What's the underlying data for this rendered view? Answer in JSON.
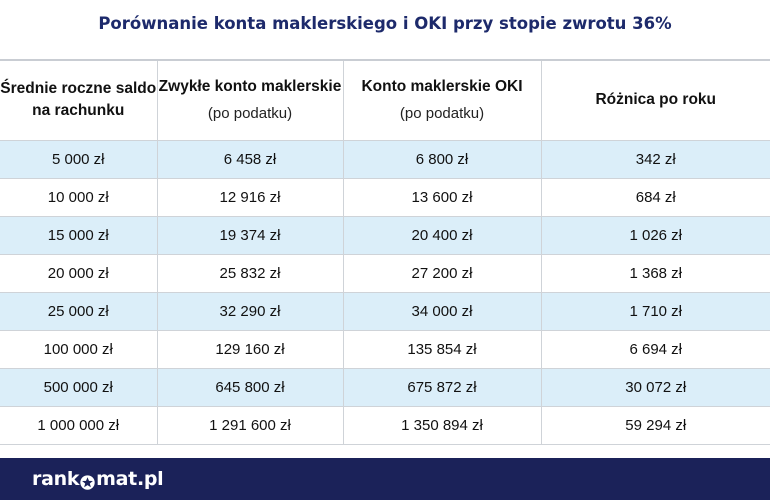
{
  "title": "Porównanie konta maklerskiego i OKI przy stopie zwrotu 36%",
  "table": {
    "headers": [
      {
        "main": "Średnie roczne saldo na rachunku",
        "sub": ""
      },
      {
        "main": "Zwykłe konto maklerskie",
        "sub": "(po podatku)"
      },
      {
        "main": "Konto maklerskie OKI",
        "sub": "(po podatku)"
      },
      {
        "main": "Różnica po roku",
        "sub": ""
      }
    ],
    "rows": [
      [
        "5 000 zł",
        "6 458 zł",
        "6 800 zł",
        "342 zł"
      ],
      [
        "10 000 zł",
        "12 916 zł",
        "13 600 zł",
        "684 zł"
      ],
      [
        "15 000 zł",
        "19 374 zł",
        "20 400 zł",
        "1 026 zł"
      ],
      [
        "20 000 zł",
        "25 832 zł",
        "27 200 zł",
        "1 368 zł"
      ],
      [
        "25 000 zł",
        "32 290 zł",
        "34 000 zł",
        "1 710 zł"
      ],
      [
        "100 000 zł",
        "129 160 zł",
        "135 854 zł",
        "6 694 zł"
      ],
      [
        "500 000 zł",
        "645 800 zł",
        "675 872 zł",
        "30 072 zł"
      ],
      [
        "1 000 000 zł",
        "1 291 600 zł",
        "1 350 894 zł",
        "59 294 zł"
      ]
    ]
  },
  "footer": {
    "logo_left": "rank",
    "logo_icon": "star-icon",
    "logo_right": "mat.pl"
  },
  "colors": {
    "title": "#1d2a6b",
    "row_highlight": "#dbeef9",
    "footer_bg": "#1b2259"
  }
}
